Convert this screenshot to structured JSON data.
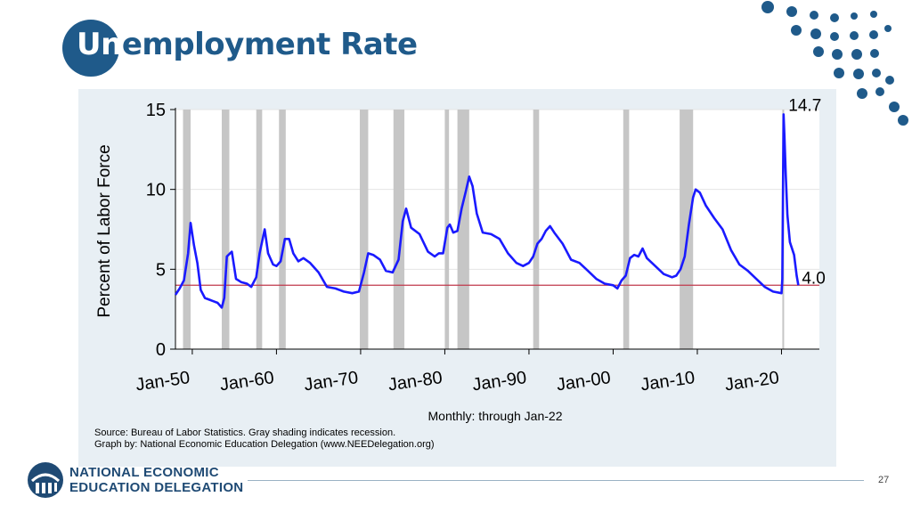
{
  "slide": {
    "title_part1": "Un",
    "title_part2": "employment Rate",
    "page_number": "27",
    "org_line1": "NATIONAL ECONOMIC",
    "org_line2": "EDUCATION DELEGATION"
  },
  "colors": {
    "brand": "#1f5a8a",
    "line": "#1a1aff",
    "recession": "#c6c6c6",
    "reference_line": "#c0394b",
    "panel_bg": "#e8eff4"
  },
  "chart_data": {
    "type": "line",
    "title": "",
    "ylabel": "Percent of Labor Force",
    "xlabel": "Monthly: through Jan-22",
    "ylim": [
      0,
      15
    ],
    "xlim": [
      1948.0,
      2024.5
    ],
    "yticks": [
      0,
      5,
      10,
      15
    ],
    "xticks": [
      {
        "x": 1950,
        "label": "Jan-50"
      },
      {
        "x": 1960,
        "label": "Jan-60"
      },
      {
        "x": 1970,
        "label": "Jan-70"
      },
      {
        "x": 1980,
        "label": "Jan-80"
      },
      {
        "x": 1990,
        "label": "Jan-90"
      },
      {
        "x": 2000,
        "label": "Jan-00"
      },
      {
        "x": 2010,
        "label": "Jan-10"
      },
      {
        "x": 2020,
        "label": "Jan-20"
      }
    ],
    "grid": true,
    "reference_line": 4.0,
    "annotations": [
      {
        "x": 2020.3,
        "y": 14.7,
        "text": "14.7"
      },
      {
        "x": 2022.0,
        "y": 4.0,
        "text": "4.0"
      }
    ],
    "recessions": [
      [
        1948.9,
        1949.8
      ],
      [
        1953.5,
        1954.4
      ],
      [
        1957.6,
        1958.3
      ],
      [
        1960.3,
        1961.1
      ],
      [
        1969.9,
        1970.9
      ],
      [
        1973.9,
        1975.2
      ],
      [
        1980.0,
        1980.5
      ],
      [
        1981.5,
        1982.9
      ],
      [
        1990.5,
        1991.2
      ],
      [
        2001.2,
        2001.9
      ],
      [
        2007.9,
        2009.5
      ],
      [
        2020.1,
        2020.3
      ]
    ],
    "series": [
      {
        "x": [
          1948.0,
          1948.5,
          1949.0,
          1949.5,
          1949.8,
          1950.2,
          1950.6,
          1951.0,
          1951.5,
          1952.0,
          1952.5,
          1953.0,
          1953.5,
          1953.8,
          1954.1,
          1954.7,
          1955.2,
          1955.8,
          1956.5,
          1957.0,
          1957.6,
          1958.0,
          1958.6,
          1959.0,
          1959.6,
          1960.0,
          1960.5,
          1961.0,
          1961.5,
          1962.0,
          1962.6,
          1963.2,
          1964.0,
          1965.0,
          1966.0,
          1967.0,
          1968.0,
          1969.0,
          1969.8,
          1970.4,
          1970.9,
          1971.5,
          1972.3,
          1973.0,
          1973.8,
          1974.5,
          1975.0,
          1975.4,
          1976.0,
          1977.0,
          1978.0,
          1978.8,
          1979.3,
          1979.8,
          1980.3,
          1980.6,
          1981.0,
          1981.5,
          1982.0,
          1982.5,
          1982.9,
          1983.3,
          1983.8,
          1984.5,
          1985.5,
          1986.5,
          1987.5,
          1988.5,
          1989.3,
          1990.0,
          1990.5,
          1991.0,
          1991.5,
          1992.0,
          1992.5,
          1993.0,
          1994.0,
          1995.0,
          1996.0,
          1997.0,
          1998.0,
          1999.0,
          2000.0,
          2000.5,
          2001.0,
          2001.5,
          2002.0,
          2002.5,
          2003.0,
          2003.5,
          2004.0,
          2005.0,
          2006.0,
          2007.0,
          2007.5,
          2008.0,
          2008.5,
          2009.0,
          2009.5,
          2009.8,
          2010.3,
          2011.0,
          2012.0,
          2013.0,
          2014.0,
          2015.0,
          2016.0,
          2017.0,
          2018.0,
          2019.0,
          2020.0,
          2020.1,
          2020.25,
          2020.35,
          2020.5,
          2020.7,
          2021.0,
          2021.5,
          2021.8,
          2022.0
        ],
        "values": [
          3.4,
          3.8,
          4.3,
          6.0,
          7.9,
          6.5,
          5.4,
          3.7,
          3.2,
          3.1,
          3.0,
          2.9,
          2.6,
          3.2,
          5.8,
          6.1,
          4.4,
          4.2,
          4.1,
          3.9,
          4.5,
          6.0,
          7.5,
          6.0,
          5.3,
          5.2,
          5.5,
          6.9,
          6.9,
          6.0,
          5.5,
          5.7,
          5.4,
          4.8,
          3.9,
          3.8,
          3.6,
          3.5,
          3.6,
          4.8,
          6.0,
          5.9,
          5.6,
          4.9,
          4.8,
          5.6,
          8.0,
          8.8,
          7.6,
          7.2,
          6.1,
          5.8,
          6.0,
          6.0,
          7.6,
          7.8,
          7.3,
          7.4,
          8.8,
          9.9,
          10.8,
          10.2,
          8.5,
          7.3,
          7.2,
          6.9,
          6.0,
          5.4,
          5.2,
          5.4,
          5.8,
          6.6,
          6.9,
          7.4,
          7.7,
          7.3,
          6.6,
          5.6,
          5.4,
          4.9,
          4.4,
          4.1,
          4.0,
          3.8,
          4.3,
          4.6,
          5.7,
          5.9,
          5.8,
          6.3,
          5.7,
          5.2,
          4.7,
          4.5,
          4.6,
          5.0,
          5.8,
          7.8,
          9.5,
          10.0,
          9.8,
          9.0,
          8.2,
          7.5,
          6.2,
          5.3,
          4.9,
          4.4,
          3.9,
          3.6,
          3.5,
          4.4,
          14.7,
          13.3,
          11.0,
          8.4,
          6.7,
          5.9,
          4.6,
          4.0
        ]
      }
    ],
    "notes": [
      "Source: Bureau of Labor Statistics. Gray shading indicates recession.",
      "Graph by: National Economic Education Delegation (www.NEEDelegation.org)"
    ]
  }
}
